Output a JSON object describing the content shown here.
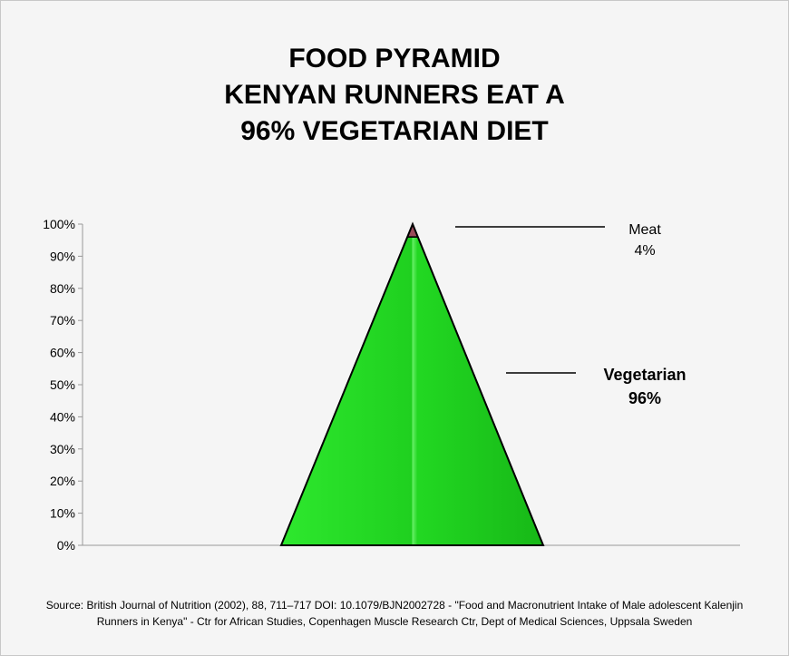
{
  "chart_data": {
    "type": "pyramid",
    "title": [
      "FOOD PYRAMID",
      "KENYAN RUNNERS EAT A",
      "96% VEGETARIAN DIET"
    ],
    "ylim": [
      0,
      100
    ],
    "y_ticks": [
      "0%",
      "10%",
      "20%",
      "30%",
      "40%",
      "50%",
      "60%",
      "70%",
      "80%",
      "90%",
      "100%"
    ],
    "series": [
      {
        "name": "Vegetarian",
        "value": 96,
        "label_value": "96%",
        "color": "#22dd22"
      },
      {
        "name": "Meat",
        "value": 4,
        "label_value": "4%",
        "color": "#9a4a5a"
      }
    ],
    "grid": false
  },
  "source": [
    "Source: British Journal of Nutrition (2002), 88, 711–717 DOI: 10.1079/BJN2002728 - \"Food and Macronutrient Intake of Male adolescent Kalenjin",
    "Runners in Kenya\" - Ctr for African Studies, Copenhagen Muscle Research Ctr, Dept of Medical Sciences, Uppsala Sweden"
  ]
}
